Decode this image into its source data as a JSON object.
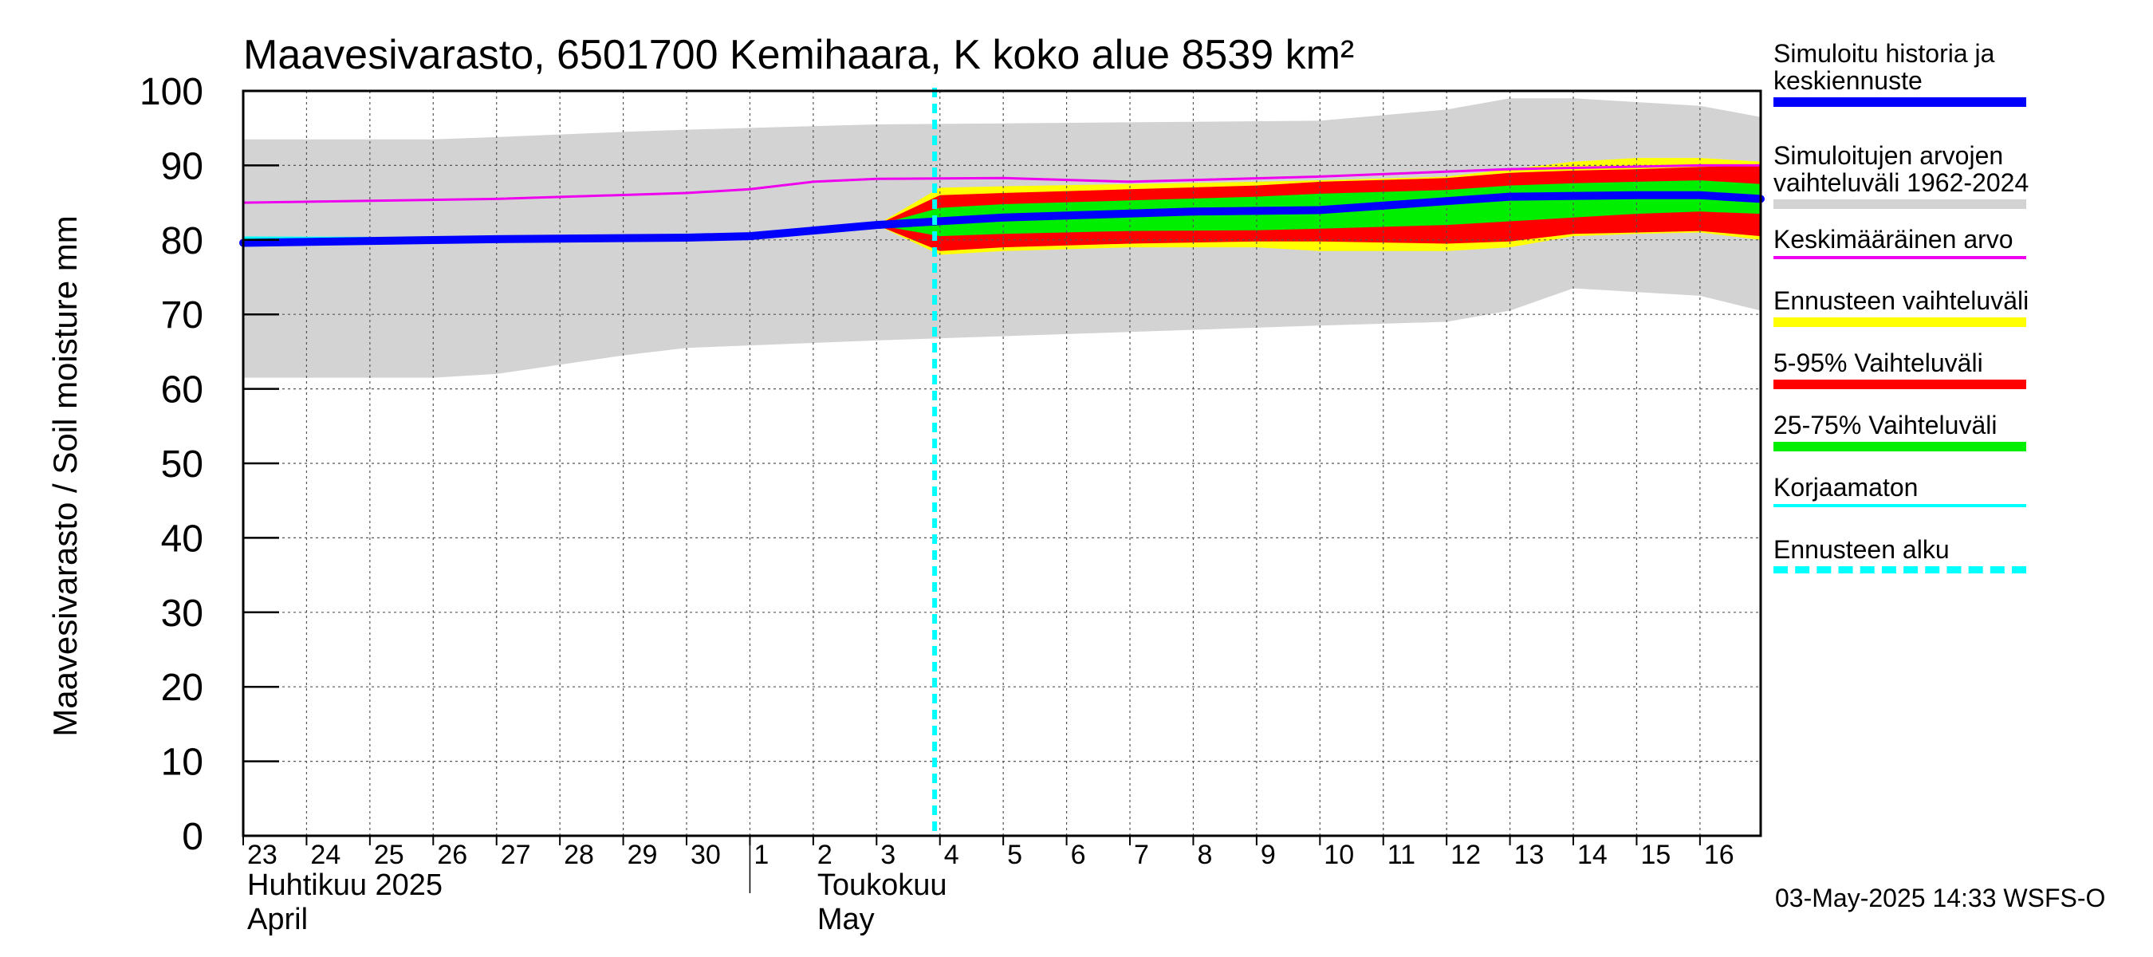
{
  "chart_data": {
    "type": "area",
    "title": "Maavesivarasto, 6501700 Kemihaara, K koko alue 8539 km²",
    "ylabel": "Maavesivarasto / Soil moisture   mm",
    "ylim": [
      0,
      100
    ],
    "yticks": [
      0,
      10,
      20,
      30,
      40,
      50,
      60,
      70,
      80,
      90,
      100
    ],
    "x_dates": [
      "2025-04-23",
      "2025-04-24",
      "2025-04-25",
      "2025-04-26",
      "2025-04-27",
      "2025-04-28",
      "2025-04-29",
      "2025-04-30",
      "2025-05-01",
      "2025-05-02",
      "2025-05-03",
      "2025-05-04",
      "2025-05-05",
      "2025-05-06",
      "2025-05-07",
      "2025-05-08",
      "2025-05-09",
      "2025-05-10",
      "2025-05-11",
      "2025-05-12",
      "2025-05-13",
      "2025-05-14",
      "2025-05-15",
      "2025-05-16"
    ],
    "xlim": [
      "2025-04-23",
      "2025-05-16T23:00"
    ],
    "day_labels": [
      "23",
      "24",
      "25",
      "26",
      "27",
      "28",
      "29",
      "30",
      "1",
      "2",
      "3",
      "4",
      "5",
      "6",
      "7",
      "8",
      "9",
      "10",
      "11",
      "12",
      "13",
      "14",
      "15",
      "16"
    ],
    "month_labels": [
      {
        "fi": "Huhtikuu  2025",
        "en": "April",
        "start": "2025-04-23"
      },
      {
        "fi": "Toukokuu",
        "en": "May",
        "start": "2025-05-02"
      }
    ],
    "forecast_start": "2025-05-03",
    "series": [
      {
        "name": "Simuloitujen arvojen vaihteluväli 1962-2024",
        "kind": "band",
        "color": "#d3d3d3",
        "x": [
          "2025-04-23",
          "2025-04-26",
          "2025-04-27",
          "2025-04-29",
          "2025-04-30",
          "2025-05-03",
          "2025-05-10",
          "2025-05-12",
          "2025-05-13",
          "2025-05-14",
          "2025-05-16",
          "2025-05-16T23:00"
        ],
        "low": [
          61.5,
          61.5,
          62,
          64.5,
          65.5,
          66.5,
          68.5,
          69,
          70.5,
          73.5,
          72.5,
          70.5
        ],
        "high": [
          93.5,
          93.5,
          93.8,
          94.5,
          94.8,
          95.5,
          96,
          97.5,
          99,
          99,
          98,
          96.5
        ]
      },
      {
        "name": "Ennusteen vaihteluväli",
        "kind": "band",
        "color": "#ffff00",
        "x": [
          "2025-05-03",
          "2025-05-04",
          "2025-05-05",
          "2025-05-07",
          "2025-05-09",
          "2025-05-10",
          "2025-05-12",
          "2025-05-13",
          "2025-05-14",
          "2025-05-15",
          "2025-05-16",
          "2025-05-16T23:00"
        ],
        "low": [
          82,
          78,
          78.5,
          79,
          79,
          78.5,
          78.5,
          79,
          80.5,
          80.8,
          81,
          80
        ],
        "high": [
          82,
          87,
          87.2,
          87.5,
          87.8,
          88,
          88.5,
          89.5,
          90.5,
          91,
          91,
          90.5
        ]
      },
      {
        "name": "5-95% Vaihteluväli",
        "kind": "band",
        "color": "#ff0000",
        "x": [
          "2025-05-03",
          "2025-05-04",
          "2025-05-05",
          "2025-05-07",
          "2025-05-09",
          "2025-05-10",
          "2025-05-12",
          "2025-05-13",
          "2025-05-14",
          "2025-05-15",
          "2025-05-16",
          "2025-05-16T23:00"
        ],
        "low": [
          82,
          78.5,
          79,
          79.5,
          79.8,
          79.8,
          79.5,
          79.8,
          80.8,
          81,
          81.2,
          80.5
        ],
        "high": [
          82,
          86,
          86.3,
          86.8,
          87.3,
          87.8,
          88.3,
          89,
          89.3,
          89.5,
          89.8,
          90
        ]
      },
      {
        "name": "25-75% Vaihteluväli",
        "kind": "band",
        "color": "#00ee00",
        "x": [
          "2025-05-03",
          "2025-05-04",
          "2025-05-05",
          "2025-05-07",
          "2025-05-09",
          "2025-05-10",
          "2025-05-12",
          "2025-05-13",
          "2025-05-14",
          "2025-05-15",
          "2025-05-16",
          "2025-05-16T23:00"
        ],
        "low": [
          82,
          80.5,
          80.8,
          81.2,
          81.3,
          81.5,
          82,
          82.5,
          83,
          83.5,
          83.8,
          83.5
        ],
        "high": [
          82,
          84.3,
          84.8,
          85.3,
          85.8,
          86.2,
          86.7,
          87.3,
          87.6,
          87.8,
          88,
          87.5
        ]
      },
      {
        "name": "Keskimääräinen arvo",
        "kind": "line",
        "color": "#ee00ee",
        "width": 3,
        "x": [
          "2025-04-23",
          "2025-04-27",
          "2025-04-30",
          "2025-05-01",
          "2025-05-02",
          "2025-05-03",
          "2025-05-05",
          "2025-05-07",
          "2025-05-10",
          "2025-05-13",
          "2025-05-16",
          "2025-05-16T23:00"
        ],
        "y": [
          85,
          85.5,
          86.3,
          86.8,
          87.8,
          88.2,
          88.3,
          87.8,
          88.5,
          89.5,
          90,
          90
        ]
      },
      {
        "name": "Korjaamaton",
        "kind": "line",
        "color": "#00ffff",
        "width": 3,
        "x": [
          "2025-04-23",
          "2025-04-27",
          "2025-04-30",
          "2025-05-01",
          "2025-05-03"
        ],
        "y": [
          80.3,
          80.2,
          80.4,
          80.6,
          82
        ]
      },
      {
        "name": "Simuloitu historia ja keskiennuste",
        "kind": "line",
        "color": "#0000ff",
        "width": 10,
        "x": [
          "2025-04-23",
          "2025-04-27",
          "2025-04-30",
          "2025-05-01",
          "2025-05-03",
          "2025-05-05",
          "2025-05-08",
          "2025-05-10",
          "2025-05-13",
          "2025-05-15",
          "2025-05-16",
          "2025-05-16T23:00"
        ],
        "y": [
          79.6,
          80.1,
          80.3,
          80.5,
          82,
          83,
          83.8,
          84,
          85.8,
          86,
          86,
          85.5
        ]
      }
    ],
    "legend": [
      {
        "label": "Simuloitu historia ja\nkeskiennuste",
        "color": "#0000ff",
        "style": "solid"
      },
      {
        "label": "Simuloitujen arvojen\nvaihteluväli 1962-2024",
        "color": "#d3d3d3",
        "style": "solid"
      },
      {
        "label": "Keskimääräinen arvo",
        "color": "#ee00ee",
        "style": "thin"
      },
      {
        "label": "Ennusteen vaihteluväli",
        "color": "#ffff00",
        "style": "solid"
      },
      {
        "label": "5-95% Vaihteluväli",
        "color": "#ff0000",
        "style": "solid"
      },
      {
        "label": "25-75% Vaihteluväli",
        "color": "#00ee00",
        "style": "solid"
      },
      {
        "label": "Korjaamaton",
        "color": "#00ffff",
        "style": "thin"
      },
      {
        "label": "Ennusteen alku",
        "color": "#00ffff",
        "style": "dashed"
      }
    ],
    "grid": true,
    "legend_position": "right"
  },
  "footer": "03-May-2025 14:33 WSFS-O"
}
